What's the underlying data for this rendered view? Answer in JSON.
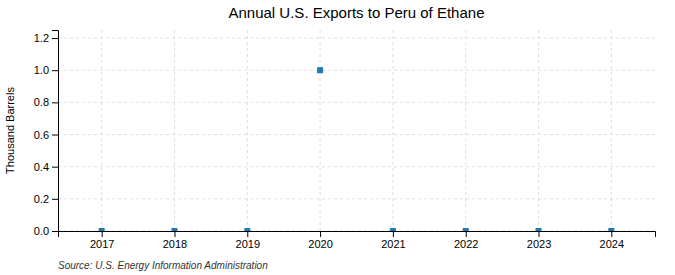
{
  "chart_data": {
    "type": "scatter",
    "title": "Annual U.S. Exports to Peru of Ethane",
    "ylabel": "Thousand Barrels",
    "source": "Source: U.S. Energy Information Administration",
    "x": [
      2017,
      2018,
      2019,
      2020,
      2021,
      2022,
      2023,
      2024
    ],
    "values": [
      0.0,
      0.0,
      0.0,
      1.0,
      0.0,
      0.0,
      0.0,
      0.0
    ],
    "xlim": [
      2016.4,
      2024.6
    ],
    "ylim": [
      0.0,
      1.25
    ],
    "xticks": [
      2017,
      2018,
      2019,
      2020,
      2021,
      2022,
      2023,
      2024
    ],
    "yticks": [
      {
        "value": 0.0,
        "label": "0.0"
      },
      0.2,
      0.4,
      0.6,
      0.8,
      {
        "value": 1.0,
        "label": "1.0"
      },
      1.2
    ],
    "grid": true,
    "marker": "square"
  }
}
